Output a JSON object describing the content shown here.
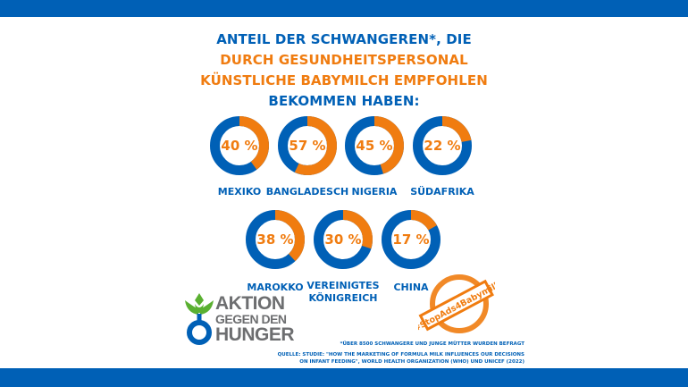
{
  "title": {
    "line1": "ANTEIL DER SCHWANGEREN*, DIE",
    "line2": "DURCH GESUNDHEITSPERSONAL",
    "line3": "KÜNSTLICHE BABYMILCH EMPFOHLEN",
    "line4": "BEKOMMEN HABEN:"
  },
  "colors": {
    "blue": "#0060b6",
    "orange": "#f07c10",
    "logo_green": "#5ab031",
    "logo_gray": "#6d6e70"
  },
  "countries": [
    {
      "name": "MEXIKO",
      "percent": 40,
      "label": "40 %"
    },
    {
      "name": "BANGLADESCH",
      "percent": 57,
      "label": "57 %"
    },
    {
      "name": "NIGERIA",
      "percent": 45,
      "label": "45 %"
    },
    {
      "name": "SÜDAFRIKA",
      "percent": 22,
      "label": "22 %"
    },
    {
      "name": "MAROKKO",
      "percent": 38,
      "label": "38 %"
    },
    {
      "name_line1": "VEREINIGTES",
      "name_line2": "KÖNIGREICH",
      "name": "VEREINIGTES KÖNIGREICH",
      "percent": 30,
      "label": "30 %"
    },
    {
      "name": "CHINA",
      "percent": 17,
      "label": "17 %"
    }
  ],
  "logo": {
    "line1": "AKTION",
    "line2": "GEGEN DEN",
    "line3": "HUNGER"
  },
  "stamp": {
    "text": "#StopAds4Babymilk"
  },
  "notes": {
    "footnote": "*ÜBER 8500 SCHWANGERE UND JUNGE MÜTTER WURDEN BEFRAGT",
    "source_line1": "QUELLE: STUDIE: \"HOW THE MARKETING OF FORMULA MILK INFLUENCES OUR DECISIONS",
    "source_line2": "ON INFANT FEEDING\", WORLD HEALTH ORGANIZATION (WHO) UND UNICEF (2022)"
  },
  "chart_data": {
    "type": "pie",
    "subtype": "donut",
    "title": "ANTEIL DER SCHWANGEREN*, DIE DURCH GESUNDHEITSPERSONAL KÜNSTLICHE BABYMILCH EMPFOHLEN BEKOMMEN HABEN:",
    "categories": [
      "MEXIKO",
      "BANGLADESCH",
      "NIGERIA",
      "SÜDAFRIKA",
      "MAROKKO",
      "VEREINIGTES KÖNIGREICH",
      "CHINA"
    ],
    "values": [
      40,
      57,
      45,
      22,
      38,
      30,
      17
    ],
    "unit": "%",
    "highlight_color": "#f07c10",
    "remainder_color": "#0060b6"
  }
}
